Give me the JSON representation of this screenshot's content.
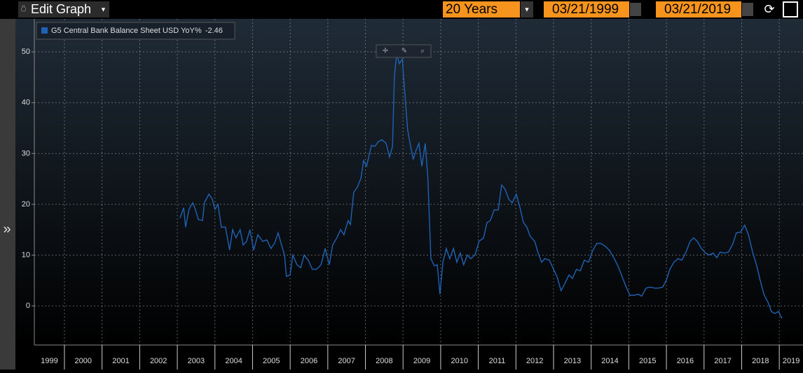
{
  "toolbar": {
    "title": "Edit Graph",
    "period": "20 Years",
    "start_date": "03/21/1999",
    "end_date": "03/21/2019"
  },
  "chart_data": {
    "type": "line",
    "xlim": [
      1999.2,
      2019.63
    ],
    "xticks": [
      2000,
      2001,
      2002,
      2003,
      2004,
      2005,
      2006,
      2007,
      2008,
      2009,
      2010,
      2011,
      2012,
      2013,
      2014,
      2015,
      2016,
      2017,
      2018,
      2019
    ],
    "x_labels": [
      1999,
      2000,
      2001,
      2002,
      2003,
      2004,
      2005,
      2006,
      2007,
      2008,
      2009,
      2010,
      2011,
      2012,
      2013,
      2014,
      2015,
      2016,
      2017,
      2018,
      2019
    ],
    "ylim": [
      -7.7,
      56.5
    ],
    "yticks": [
      0,
      10,
      20,
      30,
      40,
      50
    ],
    "grid": true,
    "legend": "top-left",
    "x": [
      2003.07,
      2003.17,
      2003.22,
      2003.31,
      2003.41,
      2003.48,
      2003.56,
      2003.67,
      2003.72,
      2003.84,
      2003.93,
      2004.0,
      2004.08,
      2004.17,
      2004.28,
      2004.39,
      2004.47,
      2004.56,
      2004.67,
      2004.75,
      2004.84,
      2004.93,
      2005.03,
      2005.14,
      2005.27,
      2005.38,
      2005.49,
      2005.59,
      2005.68,
      2005.77,
      2005.85,
      2005.9,
      2006.0,
      2006.07,
      2006.18,
      2006.28,
      2006.37,
      2006.48,
      2006.59,
      2006.7,
      2006.82,
      2006.93,
      2007.04,
      2007.13,
      2007.24,
      2007.34,
      2007.43,
      2007.54,
      2007.6,
      2007.69,
      2007.78,
      2007.88,
      2007.95,
      2008.03,
      2008.16,
      2008.25,
      2008.34,
      2008.44,
      2008.55,
      2008.64,
      2008.72,
      2008.77,
      2008.83,
      2008.9,
      2008.98,
      2009.05,
      2009.12,
      2009.2,
      2009.27,
      2009.35,
      2009.42,
      2009.5,
      2009.59,
      2009.66,
      2009.74,
      2009.83,
      2009.91,
      2009.98,
      2010.06,
      2010.15,
      2010.24,
      2010.34,
      2010.43,
      2010.52,
      2010.61,
      2010.71,
      2010.8,
      2010.91,
      2011.02,
      2011.14,
      2011.23,
      2011.32,
      2011.42,
      2011.53,
      2011.62,
      2011.71,
      2011.81,
      2011.9,
      2012.01,
      2012.1,
      2012.2,
      2012.29,
      2012.38,
      2012.5,
      2012.59,
      2012.68,
      2012.77,
      2012.89,
      2013.0,
      2013.09,
      2013.2,
      2013.3,
      2013.41,
      2013.5,
      2013.61,
      2013.71,
      2013.82,
      2013.93,
      2014.04,
      2014.15,
      2014.26,
      2014.38,
      2014.49,
      2014.6,
      2014.71,
      2014.82,
      2014.93,
      2015.03,
      2015.14,
      2015.25,
      2015.34,
      2015.46,
      2015.57,
      2015.68,
      2015.79,
      2015.9,
      2016.0,
      2016.09,
      2016.2,
      2016.31,
      2016.41,
      2016.52,
      2016.63,
      2016.72,
      2016.82,
      2016.93,
      2017.04,
      2017.13,
      2017.24,
      2017.34,
      2017.43,
      2017.54,
      2017.65,
      2017.77,
      2017.86,
      2017.97,
      2018.08,
      2018.18,
      2018.29,
      2018.4,
      2018.49,
      2018.59,
      2018.7,
      2018.79,
      2018.88,
      2018.98,
      2019.07
    ],
    "series": [
      {
        "name": "G5 Central Bank Balance Sheet USD YoY%",
        "color": "#1f62b5",
        "values": [
          17.3,
          19.3,
          15.5,
          19,
          20.3,
          19,
          17,
          16.8,
          20.3,
          22,
          21,
          19,
          20,
          15.5,
          15.5,
          11,
          15,
          13.4,
          15,
          12,
          12.7,
          15,
          11,
          14,
          12.7,
          13,
          11.3,
          12.4,
          14.4,
          12,
          10,
          5.8,
          6.1,
          10,
          8.1,
          7.5,
          10,
          9,
          7.2,
          7.2,
          8.1,
          11.3,
          8.1,
          12,
          13.4,
          15,
          14,
          16.8,
          16,
          22.4,
          23.3,
          25.1,
          28.6,
          27.5,
          31.6,
          31.4,
          32.3,
          32.7,
          32,
          29.3,
          31.4,
          45.2,
          49.6,
          47.7,
          48.6,
          41.7,
          34.8,
          31.4,
          28.9,
          30.7,
          32,
          27.5,
          32,
          25.1,
          9.3,
          7.9,
          8.1,
          2.3,
          8.6,
          11.3,
          9.3,
          11.3,
          8.6,
          10.4,
          8.1,
          10,
          9.3,
          10,
          12.7,
          13.4,
          16.4,
          16.8,
          18.9,
          18.9,
          23.8,
          23,
          21,
          20.3,
          22,
          19.6,
          16.4,
          15.5,
          13.7,
          12.7,
          10.4,
          8.6,
          9.3,
          9,
          7.2,
          5.8,
          3,
          4.4,
          6.1,
          5.4,
          7.2,
          6.9,
          9,
          8.6,
          10.9,
          12.3,
          12.3,
          11.7,
          10.9,
          9.5,
          7.9,
          5.8,
          3.7,
          2.1,
          2.1,
          2.3,
          1.9,
          3.5,
          3.7,
          3.5,
          3.5,
          3.7,
          5.1,
          7.2,
          8.6,
          9.3,
          9,
          10.6,
          12.7,
          13.4,
          12.7,
          11.3,
          10.4,
          10,
          10.4,
          9.5,
          10.6,
          10.4,
          10.6,
          12.3,
          14.4,
          14.5,
          15.9,
          14,
          10.6,
          7.9,
          5.1,
          2.3,
          0.7,
          -1.1,
          -1.5,
          -1.1,
          -2.46
        ]
      }
    ]
  }
}
